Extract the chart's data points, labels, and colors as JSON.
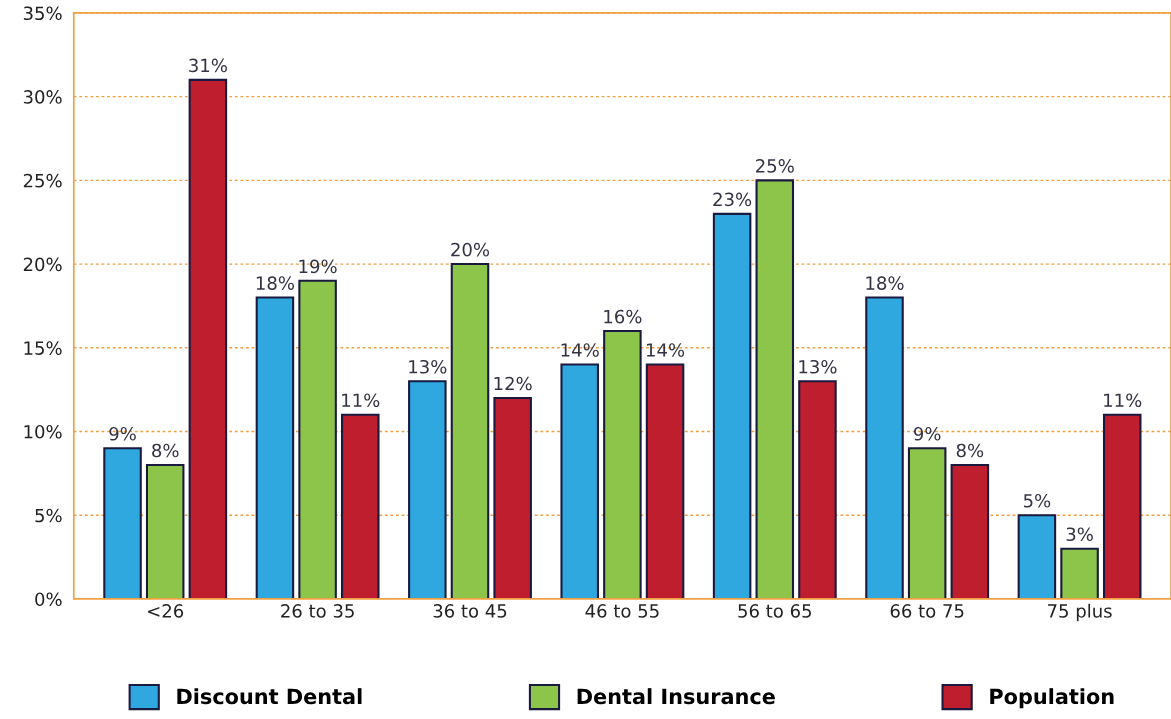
{
  "chart_data": {
    "type": "bar",
    "categories": [
      "<26",
      "26 to 35",
      "36 to 45",
      "46 to 55",
      "56 to 65",
      "66 to 75",
      "75 plus"
    ],
    "series": [
      {
        "name": "Discount Dental",
        "color": "#2ea8df",
        "values": [
          9,
          18,
          13,
          14,
          23,
          18,
          5
        ],
        "value_labels": [
          "9%",
          "18%",
          "13%",
          "14%",
          "23%",
          "18%",
          "5%"
        ]
      },
      {
        "name": "Dental Insurance",
        "color": "#8dc44a",
        "values": [
          8,
          19,
          20,
          16,
          25,
          9,
          3
        ],
        "value_labels": [
          "8%",
          "19%",
          "20%",
          "16%",
          "25%",
          "9%",
          "3%"
        ]
      },
      {
        "name": "Population",
        "color": "#be1e2d",
        "values": [
          31,
          11,
          12,
          14,
          13,
          8,
          11
        ],
        "value_labels": [
          "31%",
          "11%",
          "12%",
          "14%",
          "13%",
          "8%",
          "11%"
        ]
      }
    ],
    "ylim": [
      0,
      35
    ],
    "yticks": [
      {
        "value": 0,
        "label": "0%"
      },
      {
        "value": 5,
        "label": "5%"
      },
      {
        "value": 10,
        "label": "10%"
      },
      {
        "value": 15,
        "label": "15%"
      },
      {
        "value": 20,
        "label": "20%"
      },
      {
        "value": 25,
        "label": "25%"
      },
      {
        "value": 30,
        "label": "30%"
      },
      {
        "value": 35,
        "label": "35%"
      }
    ],
    "grid": "y",
    "legend": "bottom"
  }
}
